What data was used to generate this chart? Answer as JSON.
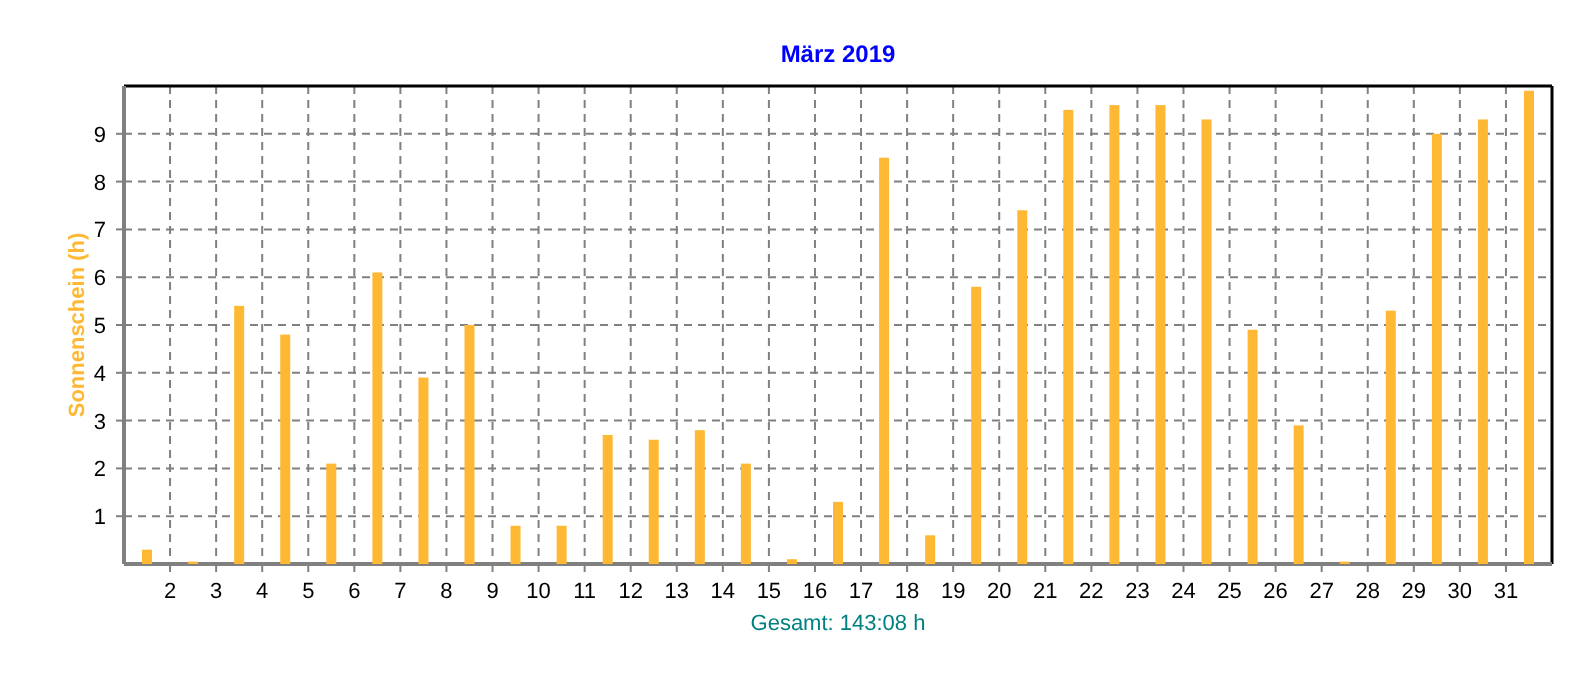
{
  "chart_data": {
    "type": "bar",
    "title": "März 2019",
    "ylabel": "Sonnenschein (h)",
    "annotations": [
      "Gesamt: 143:08 h"
    ],
    "x": [
      1.5,
      2.5,
      3.5,
      4.5,
      5.5,
      6.5,
      7.5,
      8.5,
      9.5,
      10.5,
      11.5,
      12.5,
      13.5,
      14.5,
      15.5,
      16.5,
      17.5,
      18.5,
      19.5,
      20.5,
      21.5,
      22.5,
      23.5,
      24.5,
      25.5,
      26.5,
      27.5,
      28.5,
      29.5,
      30.5,
      31.5
    ],
    "values": [
      0.3,
      0.05,
      5.4,
      4.8,
      2.1,
      6.1,
      3.9,
      5.0,
      0.8,
      0.8,
      2.7,
      2.6,
      2.8,
      2.1,
      0.1,
      1.3,
      8.5,
      0.6,
      5.8,
      7.4,
      9.5,
      9.6,
      9.6,
      9.3,
      4.9,
      2.9,
      0.05,
      5.3,
      9.0,
      9.3,
      9.9
    ],
    "color": "#ffb833",
    "xlim": [
      1,
      32
    ],
    "xticks": [
      2,
      3,
      4,
      5,
      6,
      7,
      8,
      9,
      10,
      11,
      12,
      13,
      14,
      15,
      16,
      17,
      18,
      19,
      20,
      21,
      22,
      23,
      24,
      25,
      26,
      27,
      28,
      29,
      30,
      31
    ],
    "ylim": [
      0,
      10
    ],
    "yticks": [
      1,
      2,
      3,
      4,
      5,
      6,
      7,
      8,
      9
    ],
    "grid": true
  }
}
